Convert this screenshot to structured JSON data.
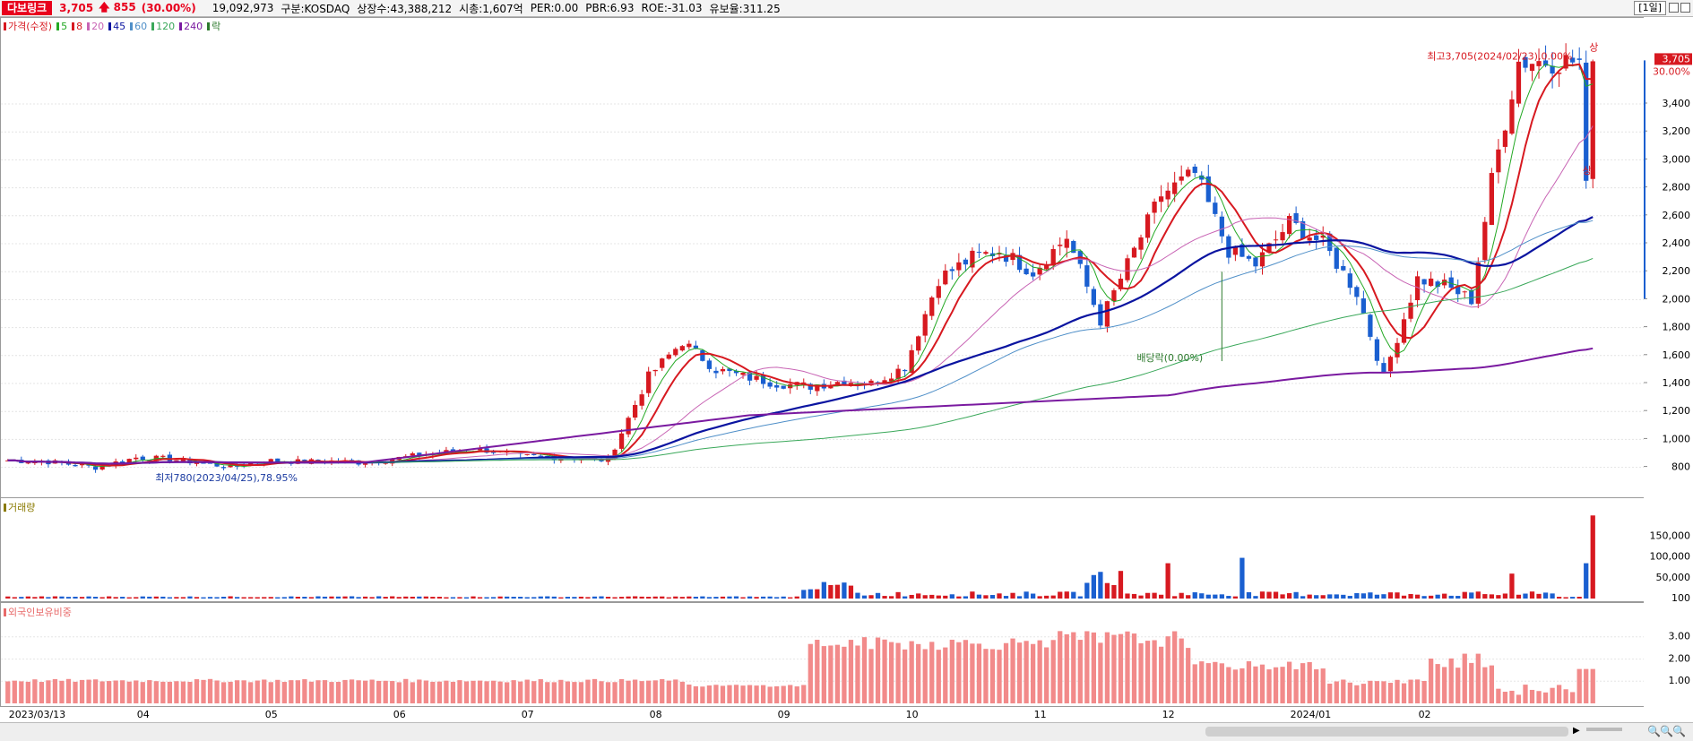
{
  "header": {
    "name": "다보링크",
    "price": "3,705",
    "change": "855",
    "rate": "(30.00%)",
    "volume": "19,092,973",
    "market": "구분:KOSDAQ",
    "shares": "상장수:43,388,212",
    "cap": "시총:1,607억",
    "per": "PER:0.00",
    "pbr": "PBR:6.93",
    "roe": "ROE:-31.03",
    "float": "유보율:311.25",
    "period": "[1일]",
    "up_arrow": "arrow-up-icon"
  },
  "legend_price": [
    {
      "label": "가격(수정)",
      "color": "#d71920"
    },
    {
      "label": "5",
      "color": "#23a823"
    },
    {
      "label": "8",
      "color": "#d71920"
    },
    {
      "label": "20",
      "color": "#c864b4"
    },
    {
      "label": "45",
      "color": "#0a14a0"
    },
    {
      "label": "60",
      "color": "#4f8fc8"
    },
    {
      "label": "120",
      "color": "#3aa85a"
    },
    {
      "label": "240",
      "color": "#7a1aa0"
    },
    {
      "label": "락",
      "color": "#2d7a2d"
    }
  ],
  "legend_volume": {
    "label": "거래량",
    "color": "#8a7a00"
  },
  "legend_foreign": {
    "label": "외국인보유비중",
    "color": "#e86a6a"
  },
  "annotations": {
    "high": "최고3,705(2024/02/23),0.00%",
    "low": "최저780(2023/04/25),78.95%",
    "dividend": "배당락(0.00%)",
    "limit_up": "상",
    "cur_price": "3,705",
    "cur_rate": "30.00%"
  },
  "chart_data": [
    {
      "type": "candlestick",
      "title": "",
      "yticks": [
        "3,400",
        "3,200",
        "3,000",
        "2,800",
        "2,600",
        "2,400",
        "2,200",
        "2,000",
        "1,800",
        "1,600",
        "1,400",
        "1,200",
        "1,000",
        "800"
      ],
      "ylim": [
        650,
        3900
      ],
      "xticks": [
        "2023/03/13",
        "04",
        "05",
        "06",
        "07",
        "08",
        "09",
        "10",
        "11",
        "12",
        "2024/01",
        "02"
      ],
      "months": [
        {
          "label": "2023/03",
          "close": [
            850,
            840,
            800
          ]
        },
        {
          "label": "04",
          "close": [
            870,
            860,
            830,
            800
          ]
        },
        {
          "label": "05",
          "close": [
            850,
            840,
            845,
            835
          ]
        },
        {
          "label": "06",
          "close": [
            860,
            900,
            930
          ]
        },
        {
          "label": "07",
          "close": [
            880,
            870,
            850
          ]
        },
        {
          "label": "08",
          "close": [
            1450,
            1700,
            1500,
            1450
          ]
        },
        {
          "label": "09",
          "close": [
            1400,
            1380,
            1420,
            1400
          ]
        },
        {
          "label": "10",
          "close": [
            1520,
            2150,
            2300,
            2350
          ]
        },
        {
          "label": "11",
          "close": [
            2200,
            2450,
            1850,
            2250
          ]
        },
        {
          "label": "12",
          "close": [
            2750,
            2900,
            2350,
            2250
          ]
        },
        {
          "label": "2024/01",
          "close": [
            2550,
            2400,
            2050,
            1450
          ]
        },
        {
          "label": "02",
          "close": [
            2150,
            2100,
            2000,
            2850,
            3705
          ]
        }
      ],
      "high": 3705,
      "low": 780,
      "last_close": 3705
    },
    {
      "type": "bar",
      "title": "거래량",
      "yticks": [
        "150,000",
        "100,000",
        "50,000",
        "100"
      ],
      "ylim": [
        0,
        220000
      ],
      "peak": 19092973
    },
    {
      "type": "bar",
      "title": "외국인보유비중",
      "yticks": [
        "3.00",
        "2.00",
        "1.00"
      ],
      "ylim": [
        0,
        4.2
      ]
    }
  ]
}
